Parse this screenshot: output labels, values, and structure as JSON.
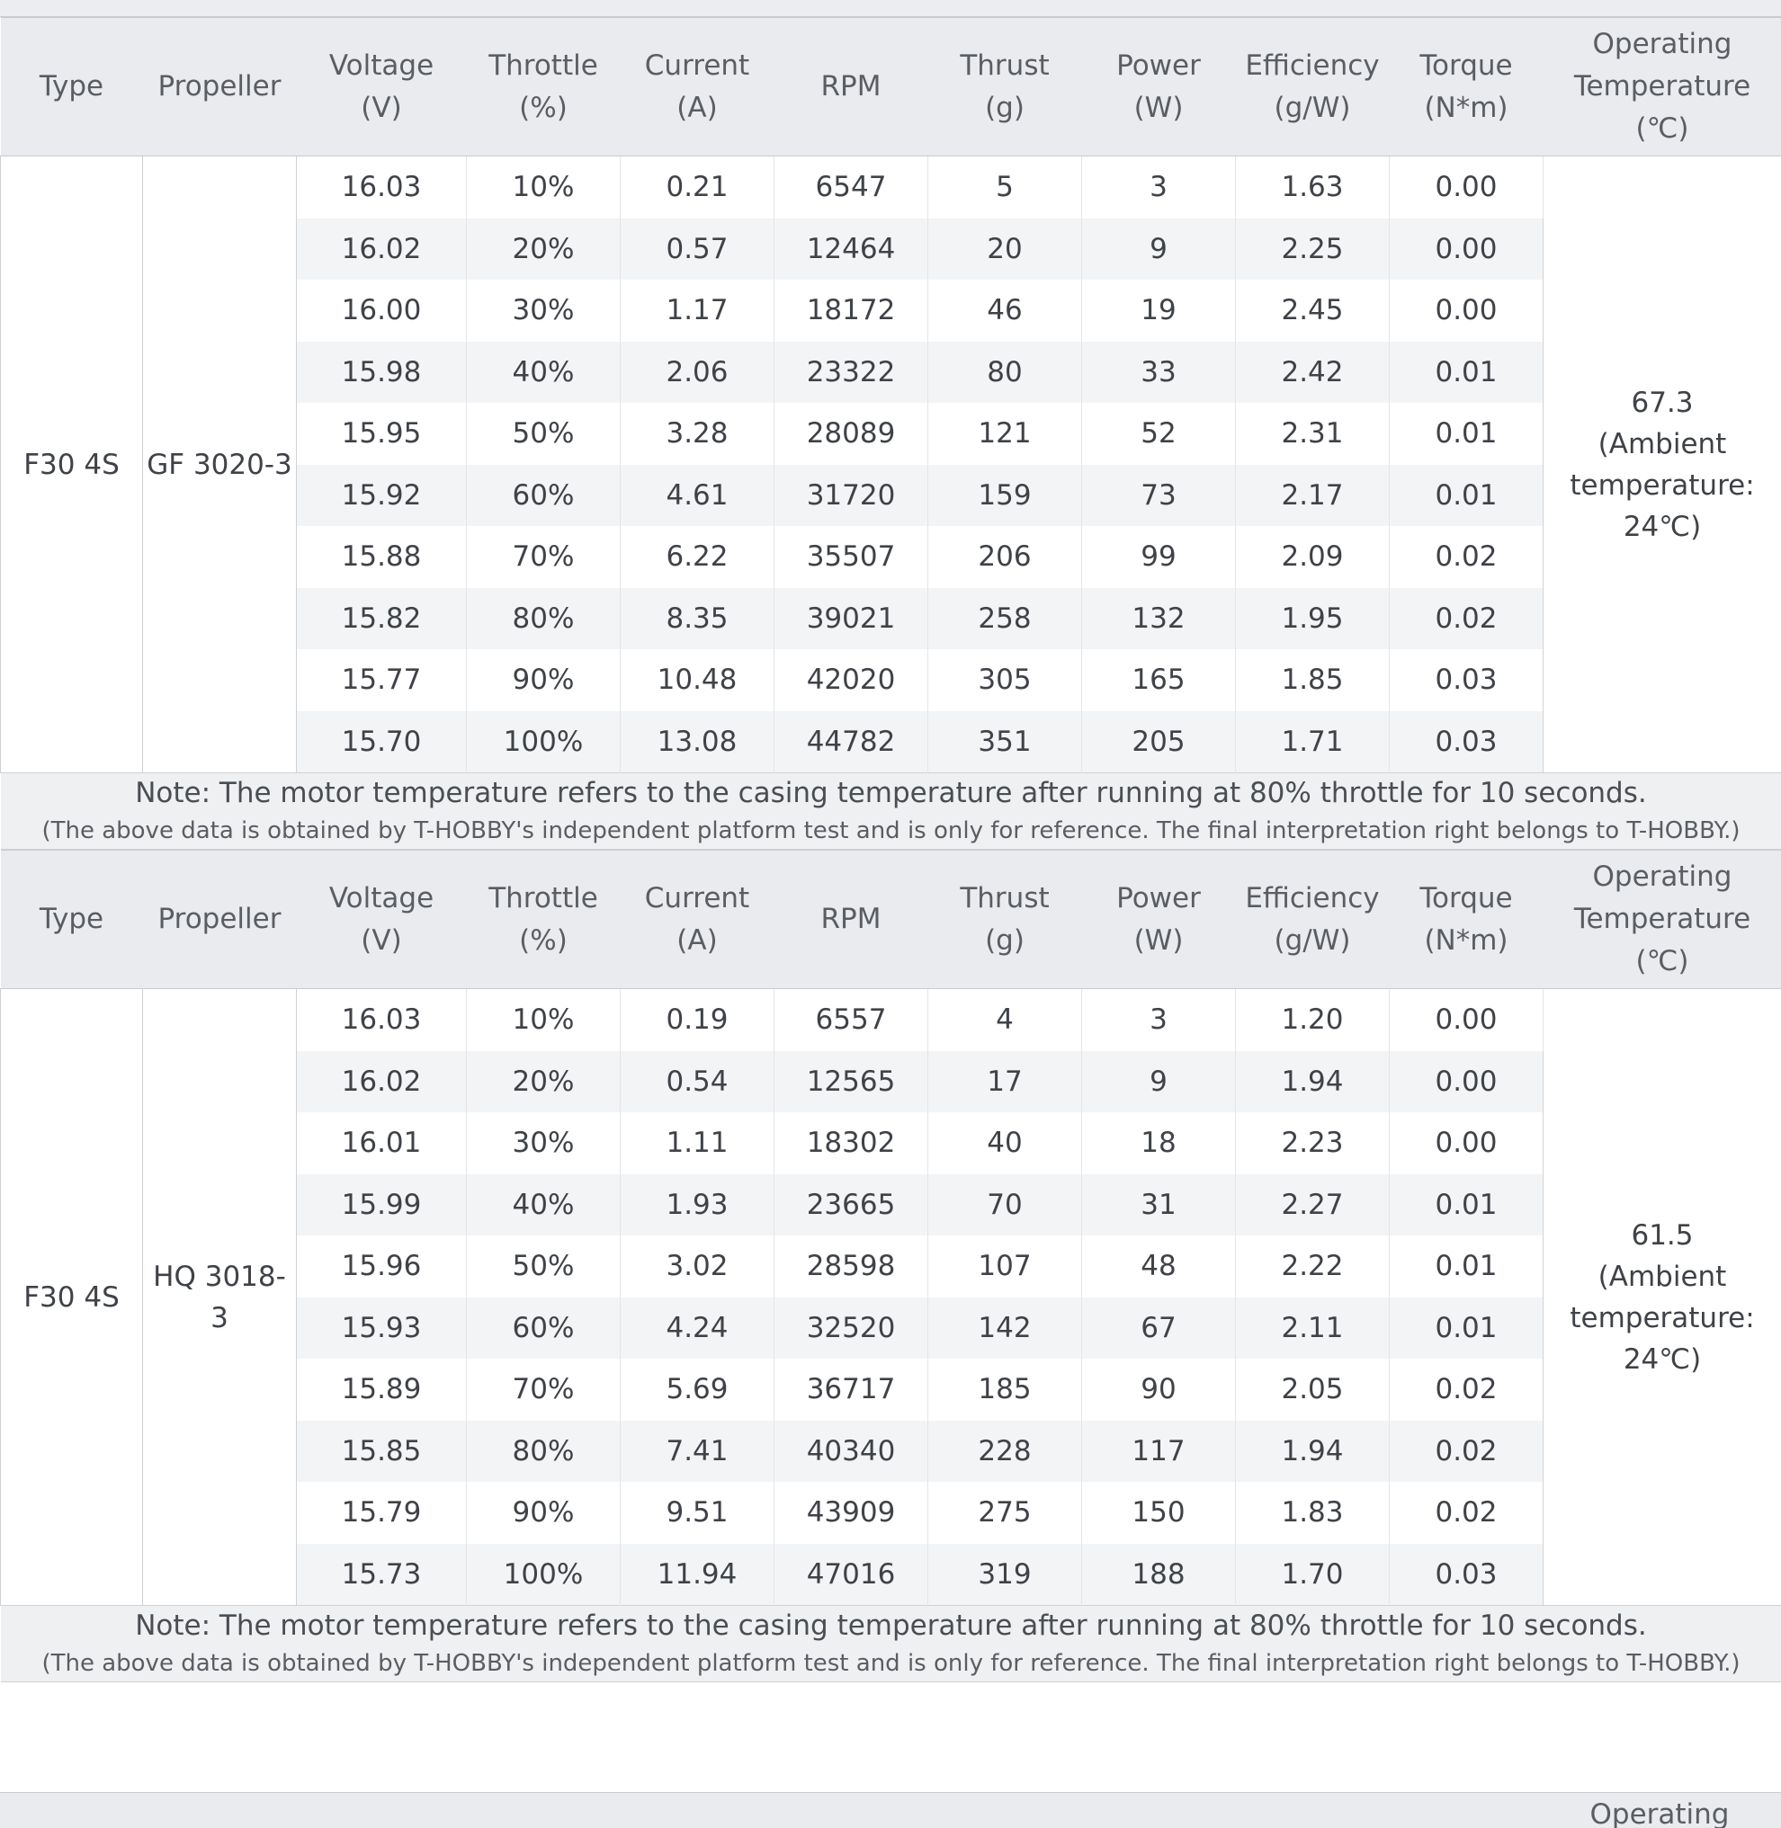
{
  "headers": [
    "Type",
    "Propeller",
    "Voltage\n(V)",
    "Throttle\n(%)",
    "Current\n(A)",
    "RPM",
    "Thrust\n(g)",
    "Power\n(W)",
    "Efficiency\n(g/W)",
    "Torque\n(N*m)",
    "Operating\nTemperature\n(℃)"
  ],
  "tables": [
    {
      "type": "F30 4S",
      "propeller": "GF 3020-3",
      "temperature": "67.3\n(Ambient\ntemperature:\n24℃)",
      "rows": [
        [
          "16.03",
          "10%",
          "0.21",
          "6547",
          "5",
          "3",
          "1.63",
          "0.00"
        ],
        [
          "16.02",
          "20%",
          "0.57",
          "12464",
          "20",
          "9",
          "2.25",
          "0.00"
        ],
        [
          "16.00",
          "30%",
          "1.17",
          "18172",
          "46",
          "19",
          "2.45",
          "0.00"
        ],
        [
          "15.98",
          "40%",
          "2.06",
          "23322",
          "80",
          "33",
          "2.42",
          "0.01"
        ],
        [
          "15.95",
          "50%",
          "3.28",
          "28089",
          "121",
          "52",
          "2.31",
          "0.01"
        ],
        [
          "15.92",
          "60%",
          "4.61",
          "31720",
          "159",
          "73",
          "2.17",
          "0.01"
        ],
        [
          "15.88",
          "70%",
          "6.22",
          "35507",
          "206",
          "99",
          "2.09",
          "0.02"
        ],
        [
          "15.82",
          "80%",
          "8.35",
          "39021",
          "258",
          "132",
          "1.95",
          "0.02"
        ],
        [
          "15.77",
          "90%",
          "10.48",
          "42020",
          "305",
          "165",
          "1.85",
          "0.03"
        ],
        [
          "15.70",
          "100%",
          "13.08",
          "44782",
          "351",
          "205",
          "1.71",
          "0.03"
        ]
      ],
      "note": "Note: The motor temperature refers to the casing temperature after running at 80% throttle for 10 seconds.",
      "subnote": "(The above data is obtained by T-HOBBY's independent platform test and is only for reference. The final interpretation right belongs to T-HOBBY.)"
    },
    {
      "type": "F30 4S",
      "propeller": "HQ 3018-\n3",
      "temperature": "61.5\n(Ambient\ntemperature:\n24℃)",
      "rows": [
        [
          "16.03",
          "10%",
          "0.19",
          "6557",
          "4",
          "3",
          "1.20",
          "0.00"
        ],
        [
          "16.02",
          "20%",
          "0.54",
          "12565",
          "17",
          "9",
          "1.94",
          "0.00"
        ],
        [
          "16.01",
          "30%",
          "1.11",
          "18302",
          "40",
          "18",
          "2.23",
          "0.00"
        ],
        [
          "15.99",
          "40%",
          "1.93",
          "23665",
          "70",
          "31",
          "2.27",
          "0.01"
        ],
        [
          "15.96",
          "50%",
          "3.02",
          "28598",
          "107",
          "48",
          "2.22",
          "0.01"
        ],
        [
          "15.93",
          "60%",
          "4.24",
          "32520",
          "142",
          "67",
          "2.11",
          "0.01"
        ],
        [
          "15.89",
          "70%",
          "5.69",
          "36717",
          "185",
          "90",
          "2.05",
          "0.02"
        ],
        [
          "15.85",
          "80%",
          "7.41",
          "40340",
          "228",
          "117",
          "1.94",
          "0.02"
        ],
        [
          "15.79",
          "90%",
          "9.51",
          "43909",
          "275",
          "150",
          "1.83",
          "0.02"
        ],
        [
          "15.73",
          "100%",
          "11.94",
          "47016",
          "319",
          "188",
          "1.70",
          "0.03"
        ]
      ],
      "note": "Note: The motor temperature refers to the casing temperature after running at 80% throttle for 10 seconds.",
      "subnote": "(The above data is obtained by T-HOBBY's independent platform test and is only for reference. The final interpretation right belongs to T-HOBBY.)"
    }
  ],
  "next_header_peek": "Operating",
  "colors": {
    "header_bg": "#e9ebee",
    "stripe_bg": "#f3f4f6",
    "note_bg": "#eef0f2",
    "text": "#3f4247"
  }
}
